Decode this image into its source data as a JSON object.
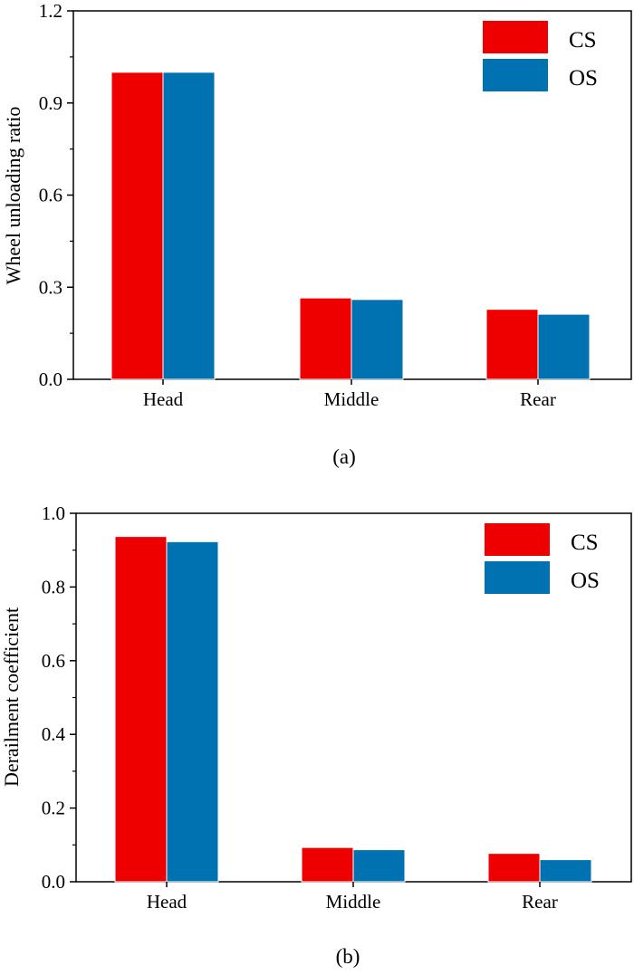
{
  "colors": {
    "CS": "#ee0000",
    "OS": "#0072b2"
  },
  "chart_data": [
    {
      "type": "bar",
      "panel_label": "(a)",
      "ylabel": "Wheel unloading ratio",
      "xlabel": "",
      "categories": [
        "Head",
        "Middle",
        "Rear"
      ],
      "series": [
        {
          "name": "CS",
          "values": [
            1.0,
            0.265,
            0.228
          ]
        },
        {
          "name": "OS",
          "values": [
            1.0,
            0.26,
            0.212
          ]
        }
      ],
      "ylim": [
        0,
        1.2
      ],
      "yticks": [
        "0.0",
        "0.3",
        "0.6",
        "0.9",
        "1.2"
      ],
      "legend": "top-right",
      "grid": false
    },
    {
      "type": "bar",
      "panel_label": "(b)",
      "ylabel": "Derailment coefficient",
      "xlabel": "",
      "categories": [
        "Head",
        "Middle",
        "Rear"
      ],
      "series": [
        {
          "name": "CS",
          "values": [
            0.937,
            0.093,
            0.077
          ]
        },
        {
          "name": "OS",
          "values": [
            0.923,
            0.087,
            0.06
          ]
        }
      ],
      "ylim": [
        0,
        1.0
      ],
      "yticks": [
        "0.0",
        "0.2",
        "0.4",
        "0.6",
        "0.8",
        "1.0"
      ],
      "legend": "top-right",
      "grid": false
    }
  ]
}
